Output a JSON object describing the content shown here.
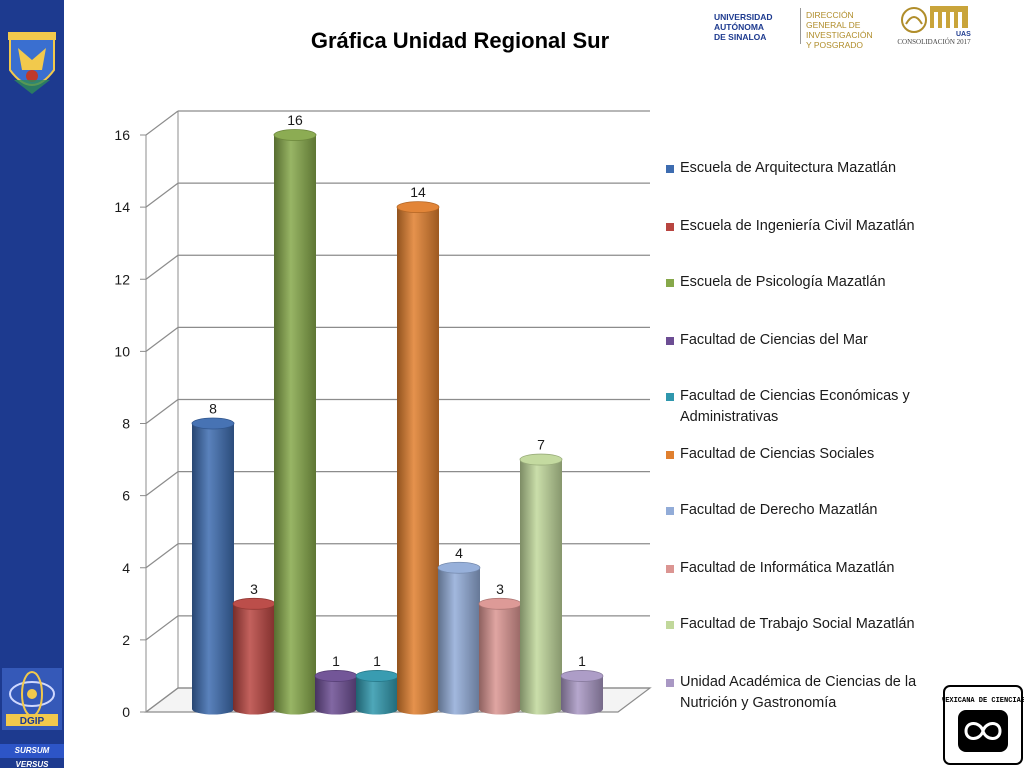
{
  "header": {
    "title": "Gráfica Unidad Regional Sur",
    "university_lines": [
      "UNIVERSIDAD",
      "AUTÓNOMA",
      "DE SINALOA"
    ],
    "office_lines": [
      "DIRECCIÓN",
      "GENERAL DE",
      "INVESTIGACIÓN",
      "Y POSGRADO"
    ],
    "consolidacion_label": "CONSOLIDACIÓN 2017",
    "uas_mark": "UAS"
  },
  "sidebar": {
    "bottom_logo_text": "DGIP",
    "motto": "SURSUM VERSUS"
  },
  "seal": {
    "text": "MEXICANA DE CIENCIAS"
  },
  "colors": {
    "sidebar": "#1d3a8f",
    "grid": "#8c8c8c"
  },
  "chart_data": {
    "type": "bar",
    "title": "Gráfica Unidad Regional Sur",
    "ylim": [
      0,
      16
    ],
    "yticks": [
      "0",
      "2",
      "4",
      "6",
      "8",
      "10",
      "12",
      "14",
      "16"
    ],
    "grid": true,
    "legend_position": "right",
    "series": [
      {
        "name": "Escuela de Arquitectura Mazatlán",
        "value": 8,
        "color": "#3d6cb0"
      },
      {
        "name": "Escuela de Ingeniería Civil Mazatlán",
        "value": 3,
        "color": "#b84540"
      },
      {
        "name": "Escuela de Psicología Mazatlán",
        "value": 16,
        "color": "#86a84a"
      },
      {
        "name": "Facultad de Ciencias del Mar",
        "value": 1,
        "color": "#6c4d93"
      },
      {
        "name": "Facultad de Ciencias Económicas y Administrativas",
        "value": 1,
        "color": "#2f97ad"
      },
      {
        "name": "Facultad de Ciencias Sociales",
        "value": 14,
        "color": "#e07f2e"
      },
      {
        "name": "Facultad de Derecho Mazatlán",
        "value": 4,
        "color": "#92acd8"
      },
      {
        "name": "Facultad de Informática Mazatlán",
        "value": 3,
        "color": "#db9592"
      },
      {
        "name": "Facultad de Trabajo Social Mazatlán",
        "value": 7,
        "color": "#c1d89b"
      },
      {
        "name": "Unidad Académica de Ciencias de la Nutrición y Gastronomía",
        "value": 1,
        "color": "#a998c4"
      }
    ]
  }
}
